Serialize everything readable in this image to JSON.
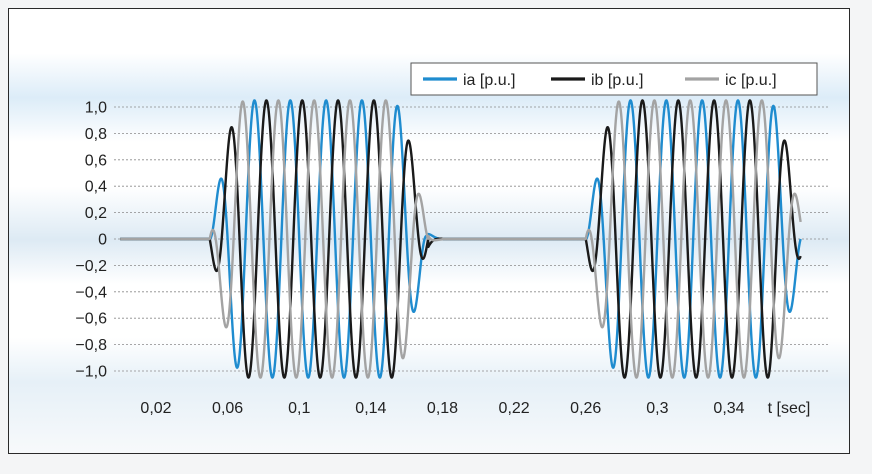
{
  "chart_data": {
    "type": "line",
    "title": "",
    "xlabel": "t [sec]",
    "ylabel": "",
    "xlim": [
      0.0,
      0.38
    ],
    "ylim": [
      -1.1,
      1.1
    ],
    "x_ticks": [
      "0,02",
      "0,06",
      "0,1",
      "0,14",
      "0,18",
      "0,22",
      "0,26",
      "0,3",
      "0,34"
    ],
    "x_tick_values": [
      0.02,
      0.06,
      0.1,
      0.14,
      0.18,
      0.22,
      0.26,
      0.3,
      0.34
    ],
    "y_ticks": [
      "1,0",
      "0,8",
      "0,6",
      "0,4",
      "0,2",
      "0",
      "−0,2",
      "−0,4",
      "−0,6",
      "−0,8",
      "−1,0"
    ],
    "y_tick_values": [
      1.0,
      0.8,
      0.6,
      0.4,
      0.2,
      0,
      -0.2,
      -0.4,
      -0.6,
      -0.8,
      -1.0
    ],
    "grid": true,
    "legend_position": "top-right",
    "frequency_hz": 50,
    "peak_amplitude": 1.05,
    "segments": [
      {
        "start": 0.05,
        "end": 0.172,
        "ramp_up": 0.02,
        "ramp_down": 0.02
      },
      {
        "start": 0.26,
        "end": 0.382,
        "ramp_up": 0.02,
        "ramp_down": 0.02
      }
    ],
    "series": [
      {
        "name": "ia [p.u.]",
        "phase_deg": 0,
        "color": "#1f8ccf"
      },
      {
        "name": "ib [p.u.]",
        "phase_deg": -120,
        "color": "#1a1a1a"
      },
      {
        "name": "ic [p.u.]",
        "phase_deg": 120,
        "color": "#a3a3a3"
      }
    ]
  }
}
